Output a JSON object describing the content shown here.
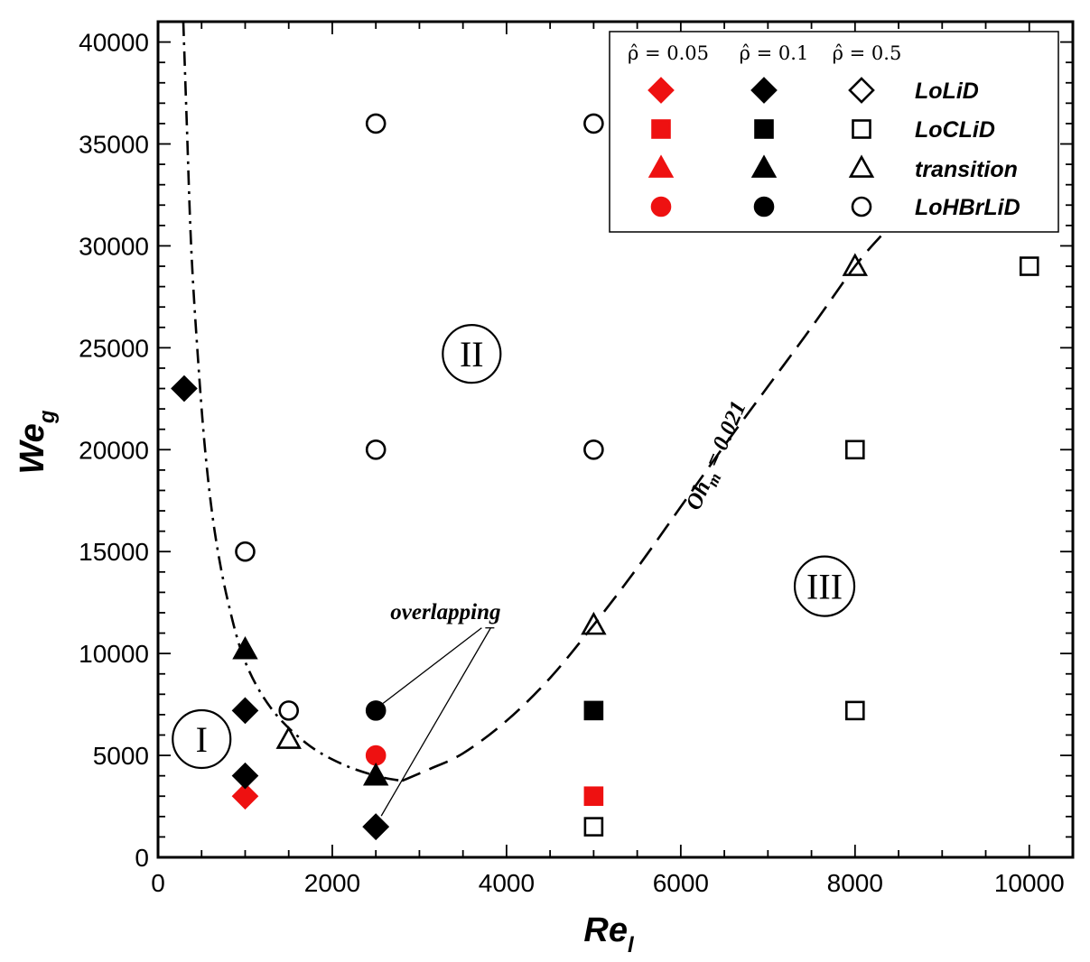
{
  "chart_data": {
    "type": "scatter",
    "title": "",
    "xlabel": "Re",
    "xlabel_sub": "l",
    "ylabel": "We",
    "ylabel_sub": "g",
    "xlim": [
      0,
      10500
    ],
    "ylim": [
      0,
      41000
    ],
    "xticks": [
      0,
      2000,
      4000,
      6000,
      8000,
      10000
    ],
    "yticks": [
      0,
      5000,
      10000,
      15000,
      20000,
      25000,
      30000,
      35000,
      40000
    ],
    "xtick_labels": [
      "0",
      "2000",
      "4000",
      "6000",
      "8000",
      "10000"
    ],
    "ytick_labels": [
      "0",
      "5000",
      "10000",
      "15000",
      "20000",
      "25000",
      "30000",
      "35000",
      "40000"
    ],
    "grid": false,
    "legend_position": "top-right",
    "legend": {
      "column_headers": [
        "ρ̂ = 0.05",
        "ρ̂ = 0.1",
        "ρ̂ = 0.5"
      ],
      "column_styles": [
        {
          "fill": "#ee1111",
          "stroke": "#ee1111"
        },
        {
          "fill": "#000000",
          "stroke": "#000000"
        },
        {
          "fill": "#ffffff",
          "stroke": "#000000"
        }
      ],
      "rows": [
        {
          "label": "LoLiD",
          "marker": "diamond"
        },
        {
          "label": "LoCLiD",
          "marker": "square"
        },
        {
          "label": "transition",
          "marker": "triangle"
        },
        {
          "label": "LoHBrLiD",
          "marker": "circle"
        }
      ]
    },
    "series": [
      {
        "density_ratio": 0.05,
        "color": "#ee1111",
        "points": [
          {
            "x": 1000,
            "y": 3000,
            "marker": "diamond"
          },
          {
            "x": 5000,
            "y": 3000,
            "marker": "square"
          },
          {
            "x": 2500,
            "y": 5000,
            "marker": "circle"
          }
        ]
      },
      {
        "density_ratio": 0.1,
        "color": "#000000",
        "points": [
          {
            "x": 300,
            "y": 23000,
            "marker": "diamond"
          },
          {
            "x": 1000,
            "y": 7200,
            "marker": "diamond"
          },
          {
            "x": 1000,
            "y": 4000,
            "marker": "diamond"
          },
          {
            "x": 2500,
            "y": 1500,
            "marker": "diamond"
          },
          {
            "x": 5000,
            "y": 7200,
            "marker": "square"
          },
          {
            "x": 1000,
            "y": 10200,
            "marker": "triangle"
          },
          {
            "x": 2500,
            "y": 4000,
            "marker": "triangle"
          },
          {
            "x": 2500,
            "y": 7200,
            "marker": "circle"
          }
        ]
      },
      {
        "density_ratio": 0.5,
        "color": "#000000",
        "points": [
          {
            "x": 2500,
            "y": 1500,
            "marker": "diamond"
          },
          {
            "x": 5000,
            "y": 1500,
            "marker": "square"
          },
          {
            "x": 8000,
            "y": 7200,
            "marker": "square"
          },
          {
            "x": 8000,
            "y": 20000,
            "marker": "square"
          },
          {
            "x": 10000,
            "y": 29000,
            "marker": "square"
          },
          {
            "x": 1500,
            "y": 5800,
            "marker": "triangle"
          },
          {
            "x": 5000,
            "y": 11400,
            "marker": "triangle"
          },
          {
            "x": 8000,
            "y": 29000,
            "marker": "triangle"
          },
          {
            "x": 1000,
            "y": 15000,
            "marker": "circle"
          },
          {
            "x": 1500,
            "y": 7200,
            "marker": "circle"
          },
          {
            "x": 2500,
            "y": 20000,
            "marker": "circle"
          },
          {
            "x": 2500,
            "y": 36000,
            "marker": "circle"
          },
          {
            "x": 5000,
            "y": 20000,
            "marker": "circle"
          },
          {
            "x": 5000,
            "y": 36000,
            "marker": "circle"
          }
        ]
      }
    ],
    "boundary_curves": [
      {
        "style": "dash-dot",
        "points": [
          [
            290,
            41000
          ],
          [
            330,
            36000
          ],
          [
            380,
            30000
          ],
          [
            450,
            25000
          ],
          [
            540,
            20000
          ],
          [
            650,
            16000
          ],
          [
            800,
            12600
          ],
          [
            1000,
            9600
          ],
          [
            1300,
            7300
          ],
          [
            1700,
            5600
          ],
          [
            2100,
            4600
          ],
          [
            2500,
            4000
          ],
          [
            2800,
            3750
          ]
        ]
      },
      {
        "style": "dashed",
        "label": "Oh_m = 0.021",
        "points": [
          [
            2800,
            3750
          ],
          [
            3100,
            4300
          ],
          [
            3500,
            5100
          ],
          [
            4000,
            6700
          ],
          [
            4500,
            8800
          ],
          [
            5000,
            11400
          ],
          [
            5500,
            14200
          ],
          [
            6000,
            17200
          ],
          [
            6500,
            20200
          ],
          [
            7000,
            23100
          ],
          [
            7500,
            26000
          ],
          [
            8000,
            29000
          ],
          [
            8300,
            30500
          ]
        ]
      }
    ],
    "regions": [
      {
        "label": "I",
        "x": 500,
        "y": 5800
      },
      {
        "label": "II",
        "x": 3600,
        "y": 24700
      },
      {
        "label": "III",
        "x": 7650,
        "y": 13300
      }
    ],
    "annotations": [
      {
        "text": "overlapping",
        "x": 3300,
        "y": 11700
      }
    ]
  }
}
